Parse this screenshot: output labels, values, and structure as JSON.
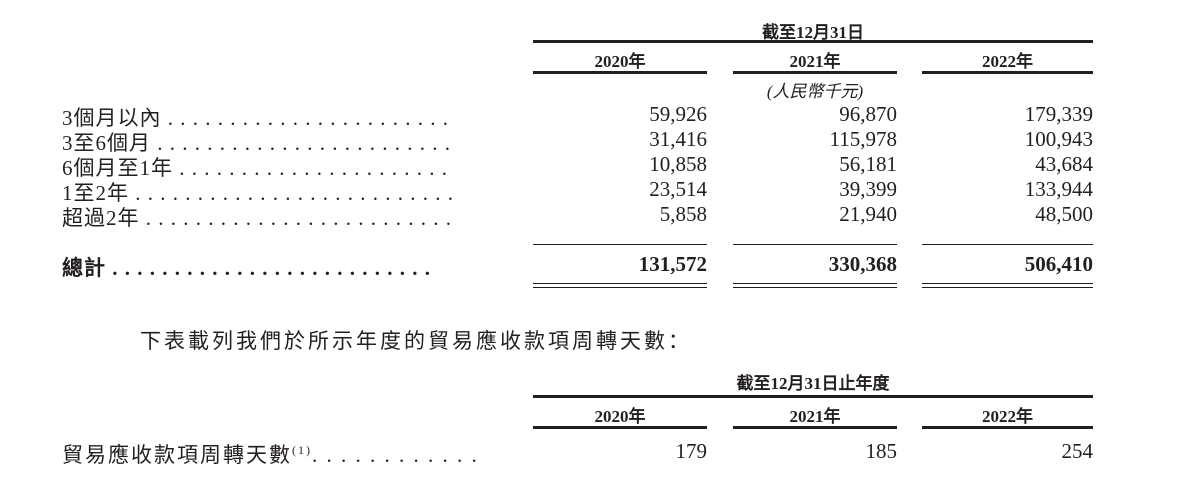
{
  "table1": {
    "header": "截至12月31日",
    "years": [
      "2020年",
      "2021年",
      "2022年"
    ],
    "unit": "(人民幣千元)",
    "rows": [
      {
        "label": "3個月以內 . . . . . . . . . . . . . . . . . . . . . . .",
        "values": [
          "59,926",
          "96,870",
          "179,339"
        ]
      },
      {
        "label": "3至6個月 . . . . . . . . . . . . . . . . . . . . . . . .",
        "values": [
          "31,416",
          "115,978",
          "100,943"
        ]
      },
      {
        "label": "6個月至1年 . . . . . . . . . . . . . . . . . . . . . .",
        "values": [
          "10,858",
          "56,181",
          "43,684"
        ]
      },
      {
        "label": "1至2年 . . . . . . . . . . . . . . . . . . . . . . . . . .",
        "values": [
          "23,514",
          "39,399",
          "133,944"
        ]
      },
      {
        "label": "超過2年 . . . . . . . . . . . . . . . . . . . . . . . . .",
        "values": [
          "5,858",
          "21,940",
          "48,500"
        ]
      }
    ],
    "total": {
      "label": "總計 . . . . . . . . . . . . . . . . . . . . . . . . . .",
      "values": [
        "131,572",
        "330,368",
        "506,410"
      ]
    }
  },
  "paragraph": "下表載列我們於所示年度的貿易應收款項周轉天數：",
  "table2": {
    "header": "截至12月31日止年度",
    "years": [
      "2020年",
      "2021年",
      "2022年"
    ],
    "row": {
      "label": "貿易應收款項周轉天數",
      "footnote": "(1)",
      "dots": ". . . . . . . . . . . .",
      "values": [
        "179",
        "185",
        "254"
      ]
    }
  }
}
